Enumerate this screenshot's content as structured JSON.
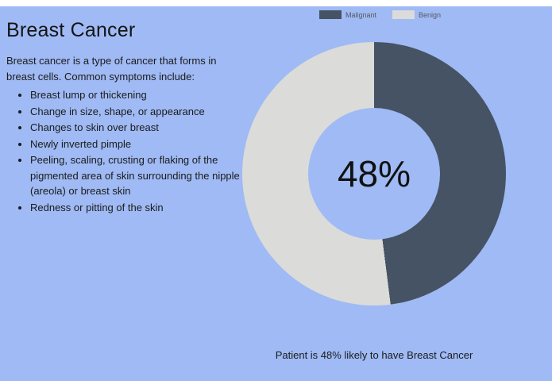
{
  "page": {
    "panel_color": "#9fbaf4",
    "frame_color": "#ffffff"
  },
  "info": {
    "title": "Breast Cancer",
    "intro": "Breast cancer is a type of cancer that forms in breast cells. Common symptoms include:",
    "symptoms": [
      "Breast lump or thickening",
      "Change in size, shape, or appearance",
      "Changes to skin over breast",
      "Newly inverted pimple",
      "Peeling, scaling, crusting or flaking of the pigmented area of skin surrounding the nipple (areola) or breast skin",
      "Redness or pitting of the skin"
    ]
  },
  "chart_data": {
    "type": "pie",
    "donut": true,
    "title": "",
    "legend_position": "top",
    "center_label": "48%",
    "slices": [
      {
        "label": "Malignant",
        "value": 48,
        "color": "#465364"
      },
      {
        "label": "Benign",
        "value": 52,
        "color": "#dbdbd9"
      }
    ]
  },
  "caption": "Patient is 48% likely to have Breast Cancer"
}
